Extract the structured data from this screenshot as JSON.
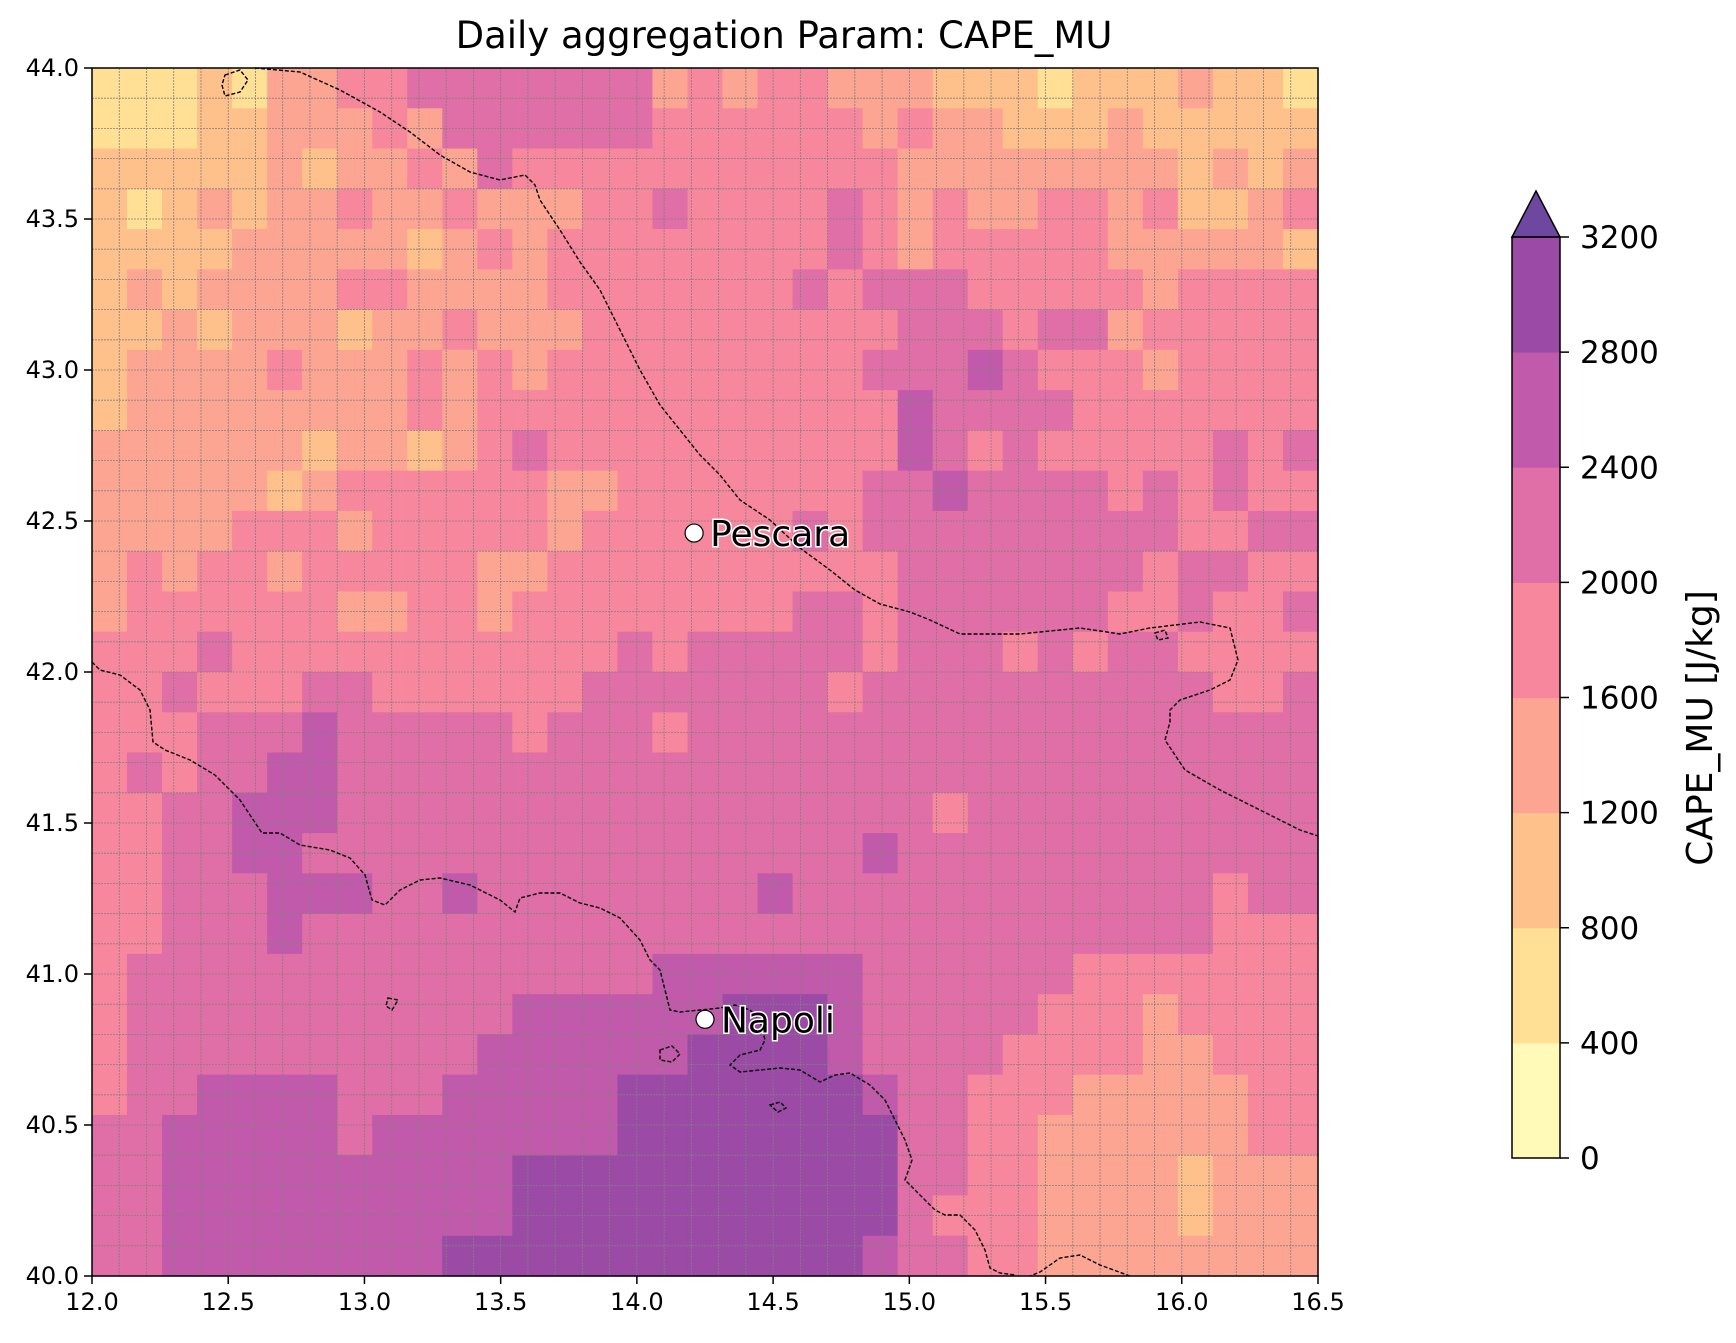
{
  "chart_data": {
    "type": "heatmap",
    "title": "Daily aggregation Param: CAPE_MU",
    "xlim": [
      12.0,
      16.5
    ],
    "ylim": [
      40.0,
      44.0
    ],
    "x_ticks": [
      "12.0",
      "12.5",
      "13.0",
      "13.5",
      "14.0",
      "14.5",
      "15.0",
      "15.5",
      "16.0",
      "16.5"
    ],
    "y_ticks": [
      "40.0",
      "40.5",
      "41.0",
      "41.5",
      "42.0",
      "42.5",
      "43.0",
      "43.5",
      "44.0"
    ],
    "grid": true,
    "grid_resolution_deg": 0.1,
    "colorbar": {
      "label": "CAPE_MU  [J/kg]",
      "ticks": [
        "0",
        "400",
        "800",
        "1200",
        "1600",
        "2000",
        "2400",
        "2800",
        "3200"
      ],
      "levels": [
        0,
        400,
        800,
        1200,
        1600,
        2000,
        2400,
        2800,
        3200
      ],
      "colors": [
        "#fffab8",
        "#ffe095",
        "#ffc18b",
        "#fda593",
        "#f7879d",
        "#e06ea7",
        "#c25aab",
        "#9b4aa6",
        "#6e48a0"
      ],
      "extend": "max"
    },
    "cities": [
      {
        "name": "Pescara",
        "lon": 14.21,
        "lat": 42.46
      },
      {
        "name": "Napoli",
        "lon": 14.25,
        "lat": 40.85
      }
    ],
    "rows_north_to_south": [
      "11121334455555553434433322212223221",
      "11122333435555554444443433222322222",
      "22222323343544444444444333333332323",
      "21232334334333445444454343344342234",
      "22223333323434444444454344444333332",
      "23233334433334444444545554444434444",
      "22323332334333444444444555455344444",
      "23333433343434444444445556544434444",
      "23333333343444444444444655554444444",
      "33333323323454444444444654544444545",
      "33333234444443344444445565555454544",
      "33334443444443444444545555555554455",
      "34344344444334444444444555555545544",
      "34444443344344444444554555555445445",
      "44454444444444454555554555454554444",
      "44544455444444555555545555555555445",
      "44455565555545554555555555555555555",
      "45455665555555555555555555555555555",
      "44556665555555555555555545555555555",
      "44556655555555555555556555555555555",
      "44555666556555555556555555555555455",
      "44555655555555555555555555555555444",
      "45555555555555556666665555554444444",
      "45555555555566666677765555544434444",
      "45555555555666666777765555444433444",
      "45566665556666677777776554443333344",
      "55666665666666677777777554433333344",
      "55666666666677777777777554433332333",
      "55666666666677777777777544433332333",
      "55666666667777777777776554433333333"
    ]
  }
}
